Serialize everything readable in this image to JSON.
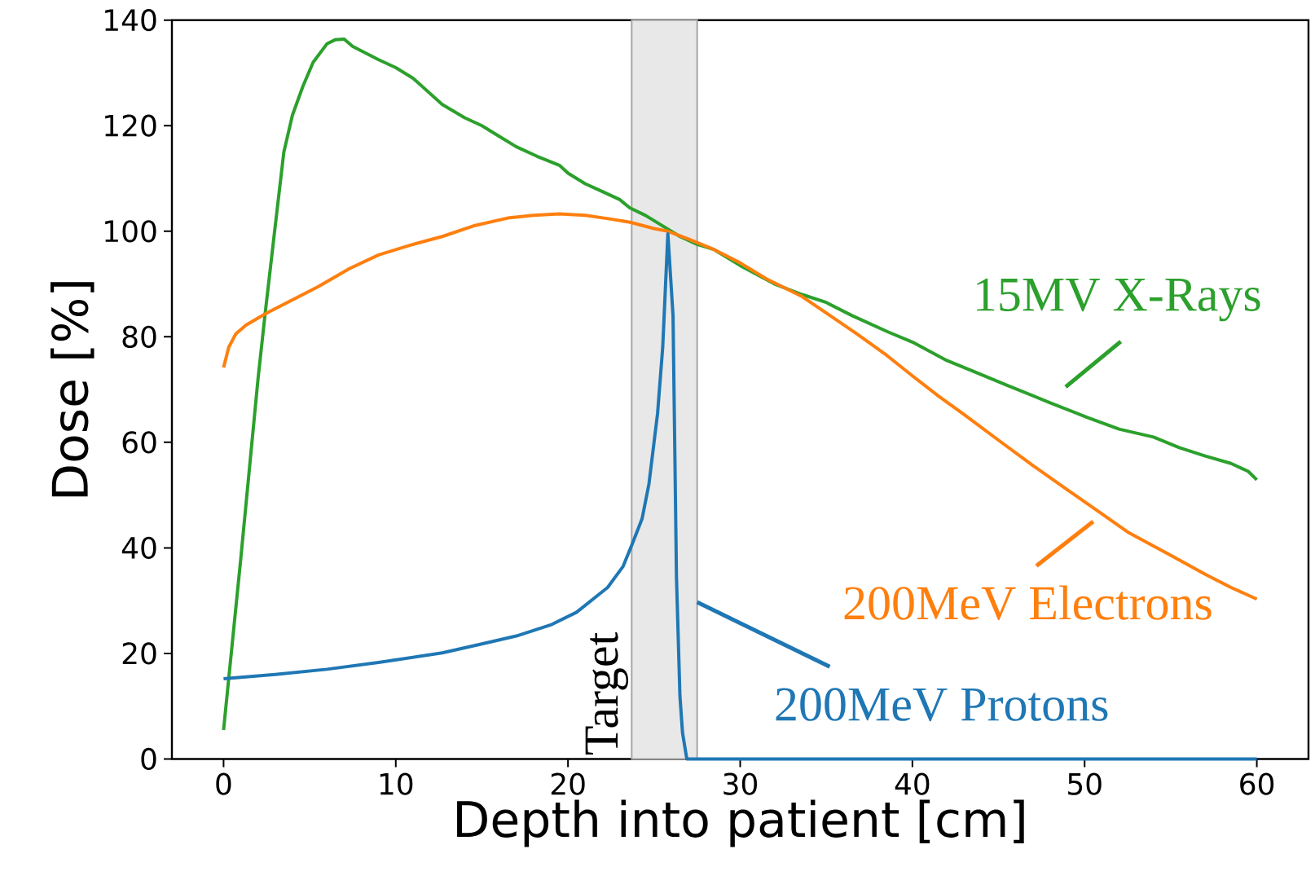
{
  "chart_data": {
    "type": "line",
    "xlabel": "Depth into patient [cm]",
    "ylabel": "Dose [%]",
    "xlim": [
      -3,
      63
    ],
    "ylim": [
      0,
      140
    ],
    "xticks": [
      0,
      10,
      20,
      30,
      40,
      50,
      60
    ],
    "yticks": [
      0,
      20,
      40,
      60,
      80,
      100,
      120,
      140
    ],
    "grid": false,
    "legend": "bottom right",
    "bands": [
      {
        "axis": "x",
        "from": 23.7,
        "to": 27.5,
        "label": "Target",
        "color": "#e8e8e8"
      }
    ],
    "series": [
      {
        "name": "15MV X-Rays",
        "color": "#2ca02c",
        "x": [
          0,
          1,
          2,
          2.4,
          3,
          3.5,
          4,
          4.6,
          5.2,
          6,
          6.5,
          7,
          7.5,
          9,
          10,
          11,
          12.7,
          14,
          15,
          16,
          17,
          18.2,
          19.5,
          20,
          21,
          22,
          23,
          23.6,
          24.5,
          25.5,
          26.5,
          27.5,
          28.5,
          30,
          32,
          33.6,
          35,
          36.5,
          38.6,
          40,
          42,
          43.5,
          45.5,
          48,
          50.1,
          52,
          54,
          55.5,
          57,
          58.5,
          59.5,
          60
        ],
        "values": [
          5.5,
          38,
          72,
          84,
          101,
          115,
          122,
          127.4,
          132,
          135.5,
          136.3,
          136.4,
          135,
          132.5,
          131,
          129,
          124,
          121.5,
          120,
          118,
          116,
          114.2,
          112.5,
          111,
          109,
          107.5,
          106,
          104.4,
          103,
          101,
          99,
          97.5,
          96.5,
          93.5,
          90,
          88,
          86.5,
          84,
          80.9,
          79,
          75.5,
          73.5,
          70.8,
          67.5,
          64.8,
          62.5,
          61,
          59,
          57.4,
          56,
          54.5,
          52.9
        ]
      },
      {
        "name": "200MeV Electrons",
        "color": "#ff7f0e",
        "x": [
          0,
          0.3,
          0.7,
          1.3,
          2.5,
          4,
          5.5,
          7.3,
          9,
          11,
          12.7,
          14.5,
          16.5,
          18,
          19.5,
          21,
          22.5,
          23.6,
          25,
          25.8,
          27,
          28.5,
          30,
          31.5,
          33.6,
          35,
          36.8,
          38.5,
          40,
          41.5,
          43.2,
          45,
          47,
          49,
          50.8,
          52.5,
          55,
          57,
          58.5,
          60
        ],
        "values": [
          74.2,
          78,
          80.5,
          82.2,
          84.5,
          87,
          89.5,
          92.9,
          95.5,
          97.5,
          99,
          101,
          102.5,
          103,
          103.3,
          103,
          102.3,
          101.7,
          100.5,
          100,
          98.5,
          96.5,
          94,
          91,
          87.6,
          84.5,
          80.5,
          76.5,
          72.6,
          68.8,
          64.8,
          60.4,
          55.6,
          51,
          46.9,
          43,
          38.6,
          35,
          32.5,
          30.3
        ]
      },
      {
        "name": "200MeV Protons",
        "color": "#1f77b4",
        "x": [
          0,
          3,
          6,
          9,
          12.7,
          15,
          17,
          19,
          20.5,
          22.3,
          23.2,
          23.7,
          24.3,
          24.7,
          25.2,
          25.5,
          25.8,
          26.1,
          26.3,
          26.5,
          26.65,
          26.9,
          60
        ],
        "values": [
          15.2,
          16,
          17,
          18.3,
          20.1,
          21.8,
          23.3,
          25.4,
          27.8,
          32.5,
          36.5,
          40.5,
          45.5,
          52.1,
          65.4,
          78,
          99.5,
          84,
          34.4,
          12,
          5,
          0,
          0
        ]
      }
    ]
  }
}
